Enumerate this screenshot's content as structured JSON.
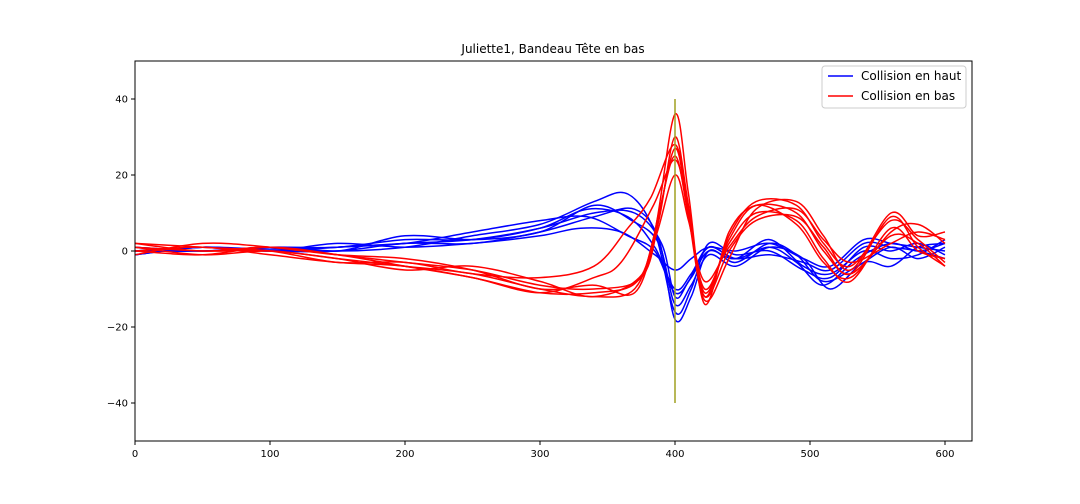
{
  "chart_data": {
    "type": "line",
    "title": "Juliette1, Bandeau Tête en bas",
    "xlabel": "",
    "ylabel": "",
    "xlim": [
      0,
      620
    ],
    "ylim": [
      -50,
      50
    ],
    "x_ticks": [
      0,
      100,
      200,
      300,
      400,
      500,
      600
    ],
    "y_ticks": [
      -40,
      -20,
      0,
      20,
      40
    ],
    "x_tick_labels": [
      "0",
      "100",
      "200",
      "300",
      "400",
      "500",
      "600"
    ],
    "y_tick_labels": [
      "−40",
      "−20",
      "0",
      "20",
      "40"
    ],
    "grid": false,
    "legend_position": "top-right",
    "legend": [
      {
        "label": "Collision en haut",
        "color": "#0000ff"
      },
      {
        "label": "Collision en bas",
        "color": "#ff0000"
      }
    ],
    "marker_line": {
      "x": 400,
      "y_range": [
        -40,
        40
      ],
      "color": "#a0a020"
    },
    "series": [
      {
        "group": "Collision en haut",
        "color": "#0000ff",
        "points": [
          [
            0,
            0
          ],
          [
            50,
            1
          ],
          [
            100,
            0.5
          ],
          [
            150,
            1
          ],
          [
            200,
            2
          ],
          [
            250,
            3
          ],
          [
            300,
            6
          ],
          [
            340,
            10
          ],
          [
            370,
            10
          ],
          [
            390,
            2
          ],
          [
            400,
            -12
          ],
          [
            410,
            -8
          ],
          [
            425,
            1
          ],
          [
            445,
            -2
          ],
          [
            470,
            1
          ],
          [
            490,
            -3
          ],
          [
            510,
            -9
          ],
          [
            535,
            -2
          ],
          [
            560,
            2
          ],
          [
            580,
            0
          ],
          [
            600,
            2
          ]
        ]
      },
      {
        "group": "Collision en haut",
        "color": "#0000ff",
        "points": [
          [
            0,
            1
          ],
          [
            50,
            0
          ],
          [
            100,
            1
          ],
          [
            150,
            0
          ],
          [
            200,
            1
          ],
          [
            250,
            4
          ],
          [
            300,
            7
          ],
          [
            340,
            13
          ],
          [
            365,
            15
          ],
          [
            385,
            5
          ],
          [
            400,
            -16
          ],
          [
            412,
            -10
          ],
          [
            425,
            2
          ],
          [
            445,
            -1
          ],
          [
            470,
            0
          ],
          [
            495,
            -5
          ],
          [
            515,
            -7
          ],
          [
            540,
            1
          ],
          [
            560,
            0
          ],
          [
            580,
            2
          ],
          [
            600,
            -1
          ]
        ]
      },
      {
        "group": "Collision en haut",
        "color": "#0000ff",
        "points": [
          [
            0,
            -1
          ],
          [
            50,
            1
          ],
          [
            100,
            0
          ],
          [
            150,
            0
          ],
          [
            200,
            2
          ],
          [
            250,
            2
          ],
          [
            300,
            5
          ],
          [
            340,
            9
          ],
          [
            370,
            11
          ],
          [
            388,
            3
          ],
          [
            400,
            -18
          ],
          [
            412,
            -12
          ],
          [
            425,
            0
          ],
          [
            445,
            -3
          ],
          [
            470,
            2
          ],
          [
            490,
            -1
          ],
          [
            510,
            -8
          ],
          [
            535,
            -4
          ],
          [
            560,
            1
          ],
          [
            580,
            -2
          ],
          [
            600,
            1
          ]
        ]
      },
      {
        "group": "Collision en haut",
        "color": "#0000ff",
        "points": [
          [
            0,
            0
          ],
          [
            50,
            0
          ],
          [
            100,
            1
          ],
          [
            150,
            1
          ],
          [
            200,
            3
          ],
          [
            250,
            3
          ],
          [
            300,
            6
          ],
          [
            335,
            11
          ],
          [
            365,
            9
          ],
          [
            385,
            1
          ],
          [
            400,
            -10
          ],
          [
            412,
            -6
          ],
          [
            425,
            1
          ],
          [
            445,
            -2
          ],
          [
            470,
            -1
          ],
          [
            495,
            -3
          ],
          [
            515,
            -5
          ],
          [
            540,
            2
          ],
          [
            560,
            1
          ],
          [
            580,
            0
          ],
          [
            600,
            -2
          ]
        ]
      },
      {
        "group": "Collision en haut",
        "color": "#0000ff",
        "points": [
          [
            0,
            0
          ],
          [
            50,
            1
          ],
          [
            100,
            0
          ],
          [
            150,
            2
          ],
          [
            200,
            1
          ],
          [
            250,
            2
          ],
          [
            300,
            4
          ],
          [
            330,
            6
          ],
          [
            360,
            5
          ],
          [
            385,
            -1
          ],
          [
            400,
            -5
          ],
          [
            412,
            -2
          ],
          [
            425,
            1
          ],
          [
            445,
            0
          ],
          [
            470,
            2
          ],
          [
            495,
            -2
          ],
          [
            515,
            -4
          ],
          [
            540,
            3
          ],
          [
            560,
            2
          ],
          [
            580,
            1
          ],
          [
            600,
            0
          ]
        ]
      },
      {
        "group": "Collision en haut",
        "color": "#0000ff",
        "points": [
          [
            0,
            1
          ],
          [
            50,
            0
          ],
          [
            100,
            1
          ],
          [
            150,
            0
          ],
          [
            200,
            4
          ],
          [
            250,
            3
          ],
          [
            300,
            5
          ],
          [
            340,
            12
          ],
          [
            368,
            8
          ],
          [
            388,
            2
          ],
          [
            400,
            -14
          ],
          [
            412,
            -9
          ],
          [
            425,
            -1
          ],
          [
            445,
            -4
          ],
          [
            470,
            1
          ],
          [
            495,
            -2
          ],
          [
            515,
            -10
          ],
          [
            540,
            -3
          ],
          [
            560,
            -4
          ],
          [
            580,
            1
          ],
          [
            600,
            2
          ]
        ]
      },
      {
        "group": "Collision en haut",
        "color": "#0000ff",
        "points": [
          [
            0,
            -1
          ],
          [
            50,
            1
          ],
          [
            100,
            0
          ],
          [
            150,
            1
          ],
          [
            200,
            2
          ],
          [
            250,
            5
          ],
          [
            300,
            8
          ],
          [
            335,
            9
          ],
          [
            365,
            4
          ],
          [
            385,
            0
          ],
          [
            400,
            -11
          ],
          [
            412,
            -7
          ],
          [
            425,
            0
          ],
          [
            445,
            -2
          ],
          [
            470,
            3
          ],
          [
            495,
            -4
          ],
          [
            515,
            -6
          ],
          [
            540,
            0
          ],
          [
            560,
            -2
          ],
          [
            580,
            -1
          ],
          [
            600,
            3
          ]
        ]
      },
      {
        "group": "Collision en bas",
        "color": "#ff0000",
        "points": [
          [
            0,
            1
          ],
          [
            50,
            -1
          ],
          [
            100,
            0
          ],
          [
            150,
            -2
          ],
          [
            200,
            -4
          ],
          [
            250,
            -6
          ],
          [
            300,
            -10
          ],
          [
            340,
            -12
          ],
          [
            370,
            -10
          ],
          [
            385,
            5
          ],
          [
            400,
            36
          ],
          [
            410,
            15
          ],
          [
            422,
            -14
          ],
          [
            440,
            5
          ],
          [
            460,
            12
          ],
          [
            490,
            10
          ],
          [
            510,
            0
          ],
          [
            530,
            -6
          ],
          [
            560,
            4
          ],
          [
            580,
            2
          ],
          [
            600,
            -4
          ]
        ]
      },
      {
        "group": "Collision en bas",
        "color": "#ff0000",
        "points": [
          [
            0,
            2
          ],
          [
            50,
            0
          ],
          [
            100,
            1
          ],
          [
            150,
            -1
          ],
          [
            200,
            -3
          ],
          [
            250,
            -5
          ],
          [
            300,
            -9
          ],
          [
            340,
            -10
          ],
          [
            375,
            -7
          ],
          [
            388,
            8
          ],
          [
            400,
            30
          ],
          [
            410,
            12
          ],
          [
            422,
            -12
          ],
          [
            440,
            4
          ],
          [
            460,
            13
          ],
          [
            490,
            12
          ],
          [
            510,
            2
          ],
          [
            530,
            -4
          ],
          [
            560,
            8
          ],
          [
            580,
            3
          ],
          [
            600,
            -3
          ]
        ]
      },
      {
        "group": "Collision en bas",
        "color": "#ff0000",
        "points": [
          [
            0,
            0
          ],
          [
            50,
            1
          ],
          [
            100,
            -1
          ],
          [
            150,
            -3
          ],
          [
            200,
            -4
          ],
          [
            250,
            -7
          ],
          [
            300,
            -11
          ],
          [
            340,
            -11
          ],
          [
            372,
            -8
          ],
          [
            386,
            6
          ],
          [
            400,
            27
          ],
          [
            410,
            10
          ],
          [
            422,
            -10
          ],
          [
            440,
            2
          ],
          [
            460,
            10
          ],
          [
            490,
            8
          ],
          [
            510,
            -2
          ],
          [
            530,
            -8
          ],
          [
            560,
            6
          ],
          [
            580,
            0
          ],
          [
            600,
            -2
          ]
        ]
      },
      {
        "group": "Collision en bas",
        "color": "#ff0000",
        "points": [
          [
            0,
            1
          ],
          [
            50,
            0
          ],
          [
            100,
            0
          ],
          [
            150,
            -2
          ],
          [
            200,
            -5
          ],
          [
            250,
            -4
          ],
          [
            300,
            -8
          ],
          [
            340,
            -12
          ],
          [
            376,
            -6
          ],
          [
            388,
            10
          ],
          [
            400,
            25
          ],
          [
            410,
            9
          ],
          [
            422,
            -13
          ],
          [
            440,
            -2
          ],
          [
            460,
            11
          ],
          [
            490,
            13
          ],
          [
            510,
            4
          ],
          [
            530,
            -5
          ],
          [
            560,
            10
          ],
          [
            580,
            4
          ],
          [
            600,
            5
          ]
        ]
      },
      {
        "group": "Collision en bas",
        "color": "#ff0000",
        "points": [
          [
            0,
            -1
          ],
          [
            50,
            2
          ],
          [
            100,
            1
          ],
          [
            150,
            -1
          ],
          [
            200,
            -2
          ],
          [
            250,
            -5
          ],
          [
            300,
            -10
          ],
          [
            340,
            -9
          ],
          [
            370,
            -11
          ],
          [
            386,
            4
          ],
          [
            400,
            20
          ],
          [
            410,
            8
          ],
          [
            422,
            -8
          ],
          [
            440,
            1
          ],
          [
            460,
            9
          ],
          [
            490,
            11
          ],
          [
            510,
            3
          ],
          [
            530,
            -3
          ],
          [
            560,
            2
          ],
          [
            580,
            5
          ],
          [
            600,
            3
          ]
        ]
      },
      {
        "group": "Collision en bas",
        "color": "#ff0000",
        "points": [
          [
            0,
            2
          ],
          [
            50,
            1
          ],
          [
            100,
            0
          ],
          [
            150,
            -3
          ],
          [
            200,
            -3
          ],
          [
            250,
            -6
          ],
          [
            300,
            -7
          ],
          [
            340,
            -4
          ],
          [
            365,
            6
          ],
          [
            382,
            14
          ],
          [
            400,
            28
          ],
          [
            410,
            11
          ],
          [
            422,
            -11
          ],
          [
            440,
            3
          ],
          [
            460,
            12
          ],
          [
            490,
            7
          ],
          [
            510,
            -3
          ],
          [
            530,
            -7
          ],
          [
            560,
            5
          ],
          [
            580,
            7
          ],
          [
            600,
            2
          ]
        ]
      },
      {
        "group": "Collision en bas",
        "color": "#ff0000",
        "points": [
          [
            0,
            0
          ],
          [
            50,
            -1
          ],
          [
            100,
            1
          ],
          [
            150,
            -1
          ],
          [
            200,
            -4
          ],
          [
            250,
            -7
          ],
          [
            300,
            -11
          ],
          [
            340,
            -7
          ],
          [
            360,
            -3
          ],
          [
            384,
            12
          ],
          [
            400,
            24
          ],
          [
            410,
            10
          ],
          [
            422,
            -12
          ],
          [
            440,
            0
          ],
          [
            460,
            8
          ],
          [
            490,
            9
          ],
          [
            510,
            1
          ],
          [
            530,
            -6
          ],
          [
            560,
            9
          ],
          [
            580,
            1
          ],
          [
            600,
            -4
          ]
        ]
      }
    ]
  }
}
